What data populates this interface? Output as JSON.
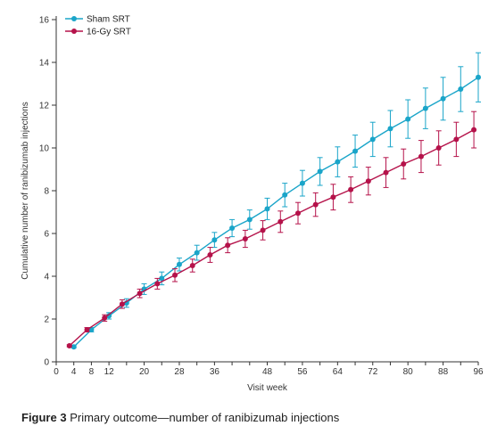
{
  "chart_data": {
    "type": "line",
    "title": "",
    "xlabel": "Visit week",
    "ylabel": "Cumulative number of ranibizumab injections",
    "xlim": [
      0,
      96
    ],
    "ylim": [
      0,
      16
    ],
    "xticks": [
      0,
      4,
      8,
      12,
      20,
      28,
      36,
      48,
      56,
      64,
      72,
      80,
      88,
      96
    ],
    "yticks": [
      0,
      2,
      4,
      6,
      8,
      10,
      12,
      14,
      16
    ],
    "grid": false,
    "legend_position": "top-left",
    "series": [
      {
        "name": "Sham SRT",
        "color": "#1aa5c9",
        "x": [
          4,
          8,
          12,
          16,
          20,
          24,
          28,
          32,
          36,
          40,
          44,
          48,
          52,
          56,
          60,
          64,
          68,
          72,
          76,
          80,
          84,
          88,
          92,
          96
        ],
        "y": [
          0.7,
          1.5,
          2.15,
          2.75,
          3.4,
          3.9,
          4.55,
          5.1,
          5.7,
          6.25,
          6.65,
          7.15,
          7.8,
          8.35,
          8.9,
          9.35,
          9.85,
          10.4,
          10.9,
          11.35,
          11.85,
          12.3,
          12.75,
          13.3
        ],
        "err": [
          0.05,
          0.1,
          0.15,
          0.2,
          0.25,
          0.3,
          0.3,
          0.35,
          0.35,
          0.4,
          0.45,
          0.5,
          0.55,
          0.6,
          0.65,
          0.7,
          0.75,
          0.8,
          0.85,
          0.9,
          0.95,
          1.0,
          1.05,
          1.15
        ]
      },
      {
        "name": "16-Gy SRT",
        "color": "#b5124a",
        "x": [
          3,
          7,
          11,
          15,
          19,
          23,
          27,
          31,
          35,
          39,
          43,
          47,
          51,
          55,
          59,
          63,
          67,
          71,
          75,
          79,
          83,
          87,
          91,
          95
        ],
        "y": [
          0.75,
          1.5,
          2.05,
          2.7,
          3.2,
          3.65,
          4.05,
          4.5,
          5.0,
          5.45,
          5.75,
          6.15,
          6.55,
          6.95,
          7.35,
          7.7,
          8.05,
          8.45,
          8.85,
          9.25,
          9.6,
          10.0,
          10.4,
          10.85
        ],
        "err": [
          0.05,
          0.1,
          0.15,
          0.2,
          0.2,
          0.25,
          0.3,
          0.3,
          0.35,
          0.35,
          0.4,
          0.45,
          0.5,
          0.5,
          0.55,
          0.6,
          0.6,
          0.65,
          0.7,
          0.7,
          0.75,
          0.8,
          0.8,
          0.85
        ]
      }
    ]
  },
  "caption": {
    "label": "Figure 3",
    "text": "Primary outcome—number of ranibizumab injections"
  }
}
